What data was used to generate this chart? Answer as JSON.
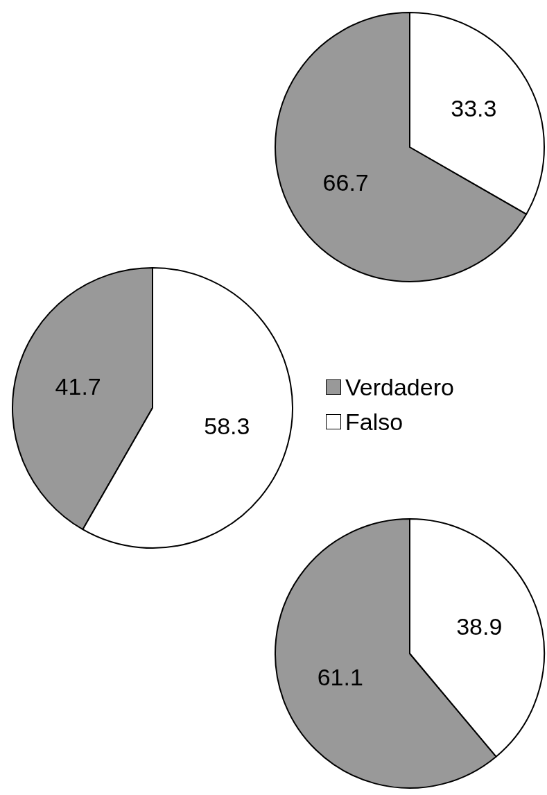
{
  "chart_data": [
    {
      "type": "pie",
      "categories": [
        null,
        null
      ],
      "values": [
        66.7,
        33.3
      ],
      "colors": [
        "#999999",
        "#ffffff"
      ],
      "data_labels": true,
      "legend": false
    },
    {
      "type": "pie",
      "categories": [
        "Verdadero",
        "Falso"
      ],
      "values": [
        41.7,
        58.3
      ],
      "colors": [
        "#999999",
        "#ffffff"
      ],
      "data_labels": true,
      "legend": "right"
    },
    {
      "type": "pie",
      "categories": [
        null,
        null
      ],
      "values": [
        61.1,
        38.9
      ],
      "colors": [
        "#999999",
        "#ffffff"
      ],
      "data_labels": true,
      "legend": false
    }
  ]
}
